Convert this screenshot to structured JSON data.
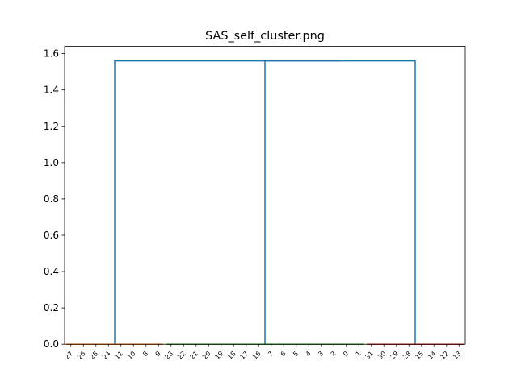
{
  "chart_data": {
    "type": "dendrogram",
    "title": "SAS_self_cluster.png",
    "xlabel": "",
    "ylabel": "",
    "ylim": [
      0,
      1.64
    ],
    "y_ticks": [
      0.0,
      0.2,
      0.4,
      0.6,
      0.8,
      1.0,
      1.2,
      1.4,
      1.6
    ],
    "y_tick_labels": [
      "0.0",
      "0.2",
      "0.4",
      "0.6",
      "0.8",
      "1.0",
      "1.2",
      "1.4",
      "1.6"
    ],
    "grid": false,
    "leaves": [
      "27",
      "26",
      "25",
      "24",
      "11",
      "10",
      "8",
      "9",
      "23",
      "22",
      "21",
      "20",
      "19",
      "18",
      "17",
      "16",
      "7",
      "6",
      "5",
      "4",
      "3",
      "2",
      "0",
      "1",
      "31",
      "30",
      "29",
      "28",
      "15",
      "14",
      "12",
      "13"
    ],
    "clusters": [
      {
        "leaves": [
          "27",
          "26",
          "25",
          "24",
          "11",
          "10",
          "8",
          "9"
        ],
        "color": "#ff7f0e",
        "merge_height": 0.0
      },
      {
        "leaves": [
          "23",
          "22",
          "21",
          "20",
          "19",
          "18",
          "17",
          "16",
          "7",
          "6",
          "5",
          "4",
          "3",
          "2",
          "0",
          "1"
        ],
        "color": "#2ca02c",
        "merge_height": 0.0
      },
      {
        "leaves": [
          "31",
          "30",
          "29",
          "28",
          "15",
          "14",
          "12",
          "13"
        ],
        "color": "#d62728",
        "merge_height": 0.0
      }
    ],
    "links": [
      {
        "left": 1,
        "right": 2,
        "height": 1.56,
        "color": "#1f77b4"
      },
      {
        "left": 0,
        "right": "link0",
        "height": 1.56,
        "color": "#1f77b4"
      }
    ]
  }
}
